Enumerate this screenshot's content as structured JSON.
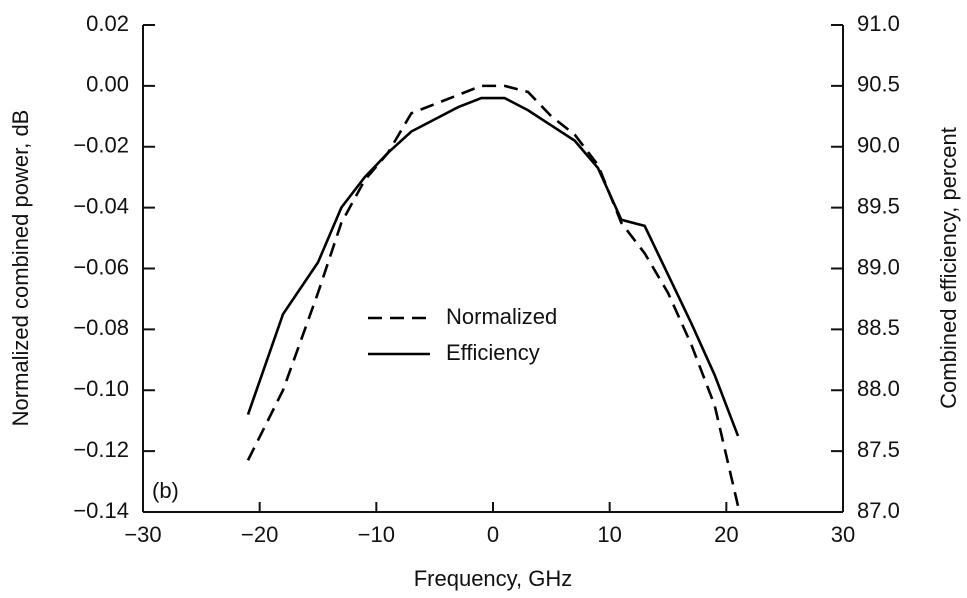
{
  "chart_data": {
    "type": "line",
    "xlabel": "Frequency, GHz",
    "ylabel": "Normalized combined power, dB",
    "y2label": "Combined efficiency, percent",
    "annotation": "(b)",
    "x": [
      -21,
      -18,
      -15,
      -13,
      -11,
      -9,
      -7,
      -5,
      -3,
      -1,
      1,
      3,
      5,
      7,
      9,
      11,
      13,
      15,
      17,
      19,
      21
    ],
    "series": [
      {
        "name": "Normalized",
        "color": "#000000",
        "line_style": "dashed",
        "values": [
          -0.123,
          -0.1,
          -0.068,
          -0.045,
          -0.031,
          -0.022,
          -0.009,
          -0.006,
          -0.003,
          0.0,
          0.0,
          -0.002,
          -0.01,
          -0.016,
          -0.026,
          -0.045,
          -0.055,
          -0.068,
          -0.085,
          -0.105,
          -0.138
        ]
      },
      {
        "name": "Efficiency",
        "color": "#000000",
        "line_style": "solid",
        "axis": "y2",
        "values": [
          87.8,
          88.625,
          89.05,
          89.5,
          89.75,
          89.95,
          90.125,
          90.225,
          90.325,
          90.4,
          90.4,
          90.3,
          90.175,
          90.05,
          89.825,
          89.4,
          89.35,
          88.95,
          88.55,
          88.125,
          87.625
        ]
      }
    ],
    "xlim": [
      -30,
      30
    ],
    "xticks": [
      {
        "value": -30,
        "label": "−30"
      },
      {
        "value": -20,
        "label": "−20"
      },
      {
        "value": -10,
        "label": "−10"
      },
      0,
      10,
      20,
      30
    ],
    "ylim": [
      -0.14,
      0.02
    ],
    "yticks": [
      {
        "value": -0.14,
        "label": "−0.14"
      },
      {
        "value": -0.12,
        "label": "−0.12"
      },
      {
        "value": -0.1,
        "label": "−0.10"
      },
      {
        "value": -0.08,
        "label": "−0.08"
      },
      {
        "value": -0.06,
        "label": "−0.06"
      },
      {
        "value": -0.04,
        "label": "−0.04"
      },
      {
        "value": -0.02,
        "label": "−0.02"
      },
      {
        "value": 0,
        "label": "0.00"
      },
      0.02
    ],
    "y2lim": [
      87,
      91
    ],
    "y2ticks": [
      {
        "value": 87,
        "label": "87.0"
      },
      87.5,
      {
        "value": 88,
        "label": "88.0"
      },
      88.5,
      {
        "value": 89,
        "label": "89.0"
      },
      89.5,
      {
        "value": 90,
        "label": "90.0"
      },
      90.5,
      {
        "value": 91,
        "label": "91.0"
      }
    ]
  }
}
